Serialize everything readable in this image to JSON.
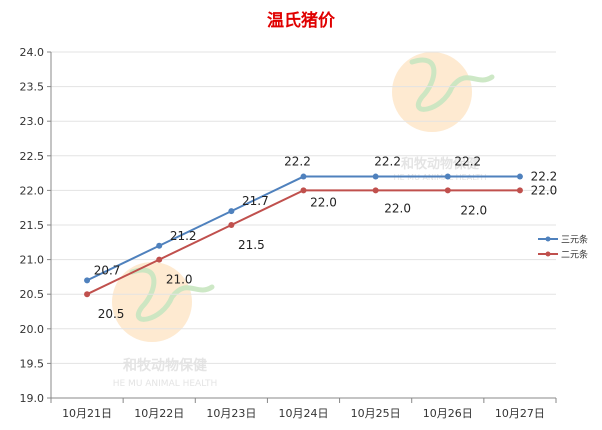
{
  "chart_data": {
    "type": "line",
    "title": "温氏猪价",
    "categories": [
      "10月21日",
      "10月22日",
      "10月23日",
      "10月24日",
      "10月25日",
      "10月26日",
      "10月27日"
    ],
    "ylim": [
      19.0,
      24.0
    ],
    "yticks": [
      19.0,
      19.5,
      20.0,
      20.5,
      21.0,
      21.5,
      22.0,
      22.5,
      23.0,
      23.5,
      24.0
    ],
    "ytick_labels": [
      "19.0",
      "19.5",
      "20.0",
      "20.5",
      "21.0",
      "21.5",
      "22.0",
      "22.5",
      "23.0",
      "23.5",
      "24.0"
    ],
    "grid": true,
    "legend_position": "right",
    "series": [
      {
        "name": "三元条",
        "color": "#4f81bd",
        "values": [
          20.7,
          21.2,
          21.7,
          22.2,
          22.2,
          22.2,
          22.2
        ],
        "labels": [
          "20.7",
          "21.2",
          "21.7",
          "22.2",
          "22.2",
          "22.2",
          "22.2"
        ]
      },
      {
        "name": "二元条",
        "color": "#c0504d",
        "values": [
          20.5,
          21.0,
          21.5,
          22.0,
          22.0,
          22.0,
          22.0
        ],
        "labels": [
          "20.5",
          "21.0",
          "21.5",
          "22.0",
          "22.0",
          "22.0",
          "22.0"
        ]
      }
    ],
    "title_color": "#e00000",
    "watermark": {
      "text_cn": "和牧动物保健",
      "text_en": "HE MU ANIMAL HEALTH"
    }
  }
}
